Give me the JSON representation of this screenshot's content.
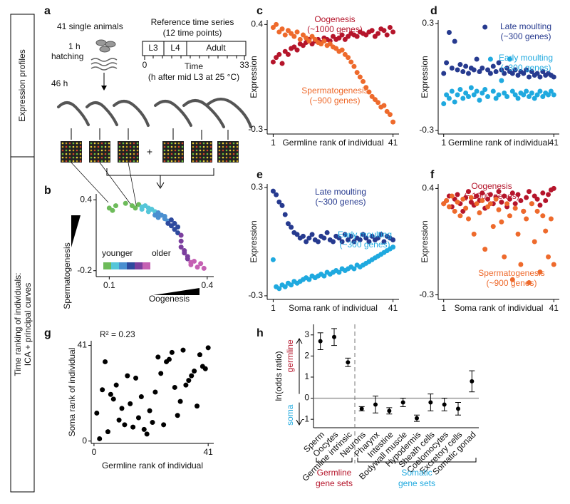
{
  "side_labels": {
    "top": "Expression profiles",
    "bottom": [
      "Time ranking of individuals:",
      "ICA + principal curves"
    ]
  },
  "panel_a": {
    "panel": "a",
    "title": "41 single animals",
    "hatch_time": "1 h",
    "hatch": "hatching",
    "age": "46 h",
    "ref_title": "Reference time series",
    "ref_sub": "(12 time points)",
    "stages": [
      "L3",
      "L4",
      "Adult"
    ],
    "time_start": "0",
    "time_end": "33",
    "time_label": "Time",
    "time_note": "(h after mid L3 at 25 °C)",
    "plus": "+"
  },
  "chart_data": [
    {
      "panel": "b",
      "type": "scatter",
      "xlabel": "Oogenesis",
      "ylabel": "Spermatogenesis",
      "xlim": [
        0.06,
        0.42
      ],
      "ylim": [
        -0.25,
        0.45
      ],
      "xticks": [
        0.1,
        0.4
      ],
      "yticks": [
        0.4,
        -0.2
      ],
      "x": [
        0.1,
        0.12,
        0.11,
        0.15,
        0.17,
        0.18,
        0.19,
        0.2,
        0.2,
        0.21,
        0.22,
        0.22,
        0.23,
        0.24,
        0.24,
        0.25,
        0.25,
        0.26,
        0.27,
        0.27,
        0.28,
        0.28,
        0.29,
        0.29,
        0.3,
        0.3,
        0.31,
        0.31,
        0.32,
        0.32,
        0.32,
        0.33,
        0.33,
        0.34,
        0.34,
        0.35,
        0.35,
        0.36,
        0.37,
        0.38,
        0.39
      ],
      "values": [
        0.33,
        0.35,
        0.31,
        0.37,
        0.35,
        0.33,
        0.36,
        0.34,
        0.32,
        0.35,
        0.33,
        0.3,
        0.32,
        0.3,
        0.27,
        0.29,
        0.25,
        0.27,
        0.24,
        0.26,
        0.22,
        0.2,
        0.23,
        0.18,
        0.2,
        0.15,
        0.17,
        0.12,
        0.1,
        0.05,
        0.0,
        -0.03,
        -0.05,
        -0.1,
        -0.08,
        -0.13,
        -0.15,
        -0.12,
        -0.17,
        -0.14,
        -0.18
      ],
      "colormap": [
        "#6dbb5a",
        "#55c6d9",
        "#4a8fd0",
        "#2e4a9e",
        "#7b3f9e",
        "#c561b3"
      ],
      "legend_labels": [
        "younger",
        "older"
      ]
    },
    {
      "panel": "c",
      "type": "scatter",
      "xlabel": "Germline rank of individual",
      "ylabel": "Expression",
      "xlim": [
        -1,
        43
      ],
      "ylim": [
        -0.33,
        0.43
      ],
      "xticks": [
        1,
        41
      ],
      "yticks": [
        0.4,
        -0.3
      ],
      "x": [
        1,
        2,
        3,
        4,
        5,
        6,
        7,
        8,
        9,
        10,
        11,
        12,
        13,
        14,
        15,
        16,
        17,
        18,
        19,
        20,
        21,
        22,
        23,
        24,
        25,
        26,
        27,
        28,
        29,
        30,
        31,
        32,
        33,
        34,
        35,
        36,
        37,
        38,
        39,
        40,
        41
      ],
      "series": [
        {
          "name": "Oogenesis",
          "genes": "(~1000 genes)",
          "color": "#b5152b",
          "values": [
            0.15,
            0.18,
            0.2,
            0.14,
            0.22,
            0.2,
            0.24,
            0.25,
            0.23,
            0.27,
            0.26,
            0.28,
            0.3,
            0.27,
            0.29,
            0.3,
            0.28,
            0.31,
            0.3,
            0.29,
            0.32,
            0.3,
            0.31,
            0.33,
            0.3,
            0.32,
            0.34,
            0.33,
            0.32,
            0.35,
            0.34,
            0.33,
            0.35,
            0.36,
            0.32,
            0.34,
            0.37,
            0.36,
            0.33,
            0.38,
            0.35
          ]
        },
        {
          "name": "Spermatogenesis",
          "genes": "(~900 genes)",
          "color": "#ee6a2c",
          "values": [
            0.38,
            0.4,
            0.35,
            0.37,
            0.33,
            0.36,
            0.34,
            0.32,
            0.35,
            0.3,
            0.33,
            0.31,
            0.29,
            0.32,
            0.3,
            0.28,
            0.27,
            0.29,
            0.26,
            0.27,
            0.25,
            0.24,
            0.22,
            0.23,
            0.2,
            0.18,
            0.15,
            0.12,
            0.08,
            0.05,
            0.02,
            -0.02,
            -0.05,
            -0.08,
            -0.1,
            -0.12,
            -0.15,
            -0.14,
            -0.18,
            -0.2,
            -0.25
          ]
        }
      ]
    },
    {
      "panel": "d",
      "type": "scatter",
      "xlabel": "Germline rank of individual",
      "ylabel": "Expression",
      "xlim": [
        -1,
        43
      ],
      "ylim": [
        -0.32,
        0.32
      ],
      "xticks": [
        1,
        41
      ],
      "yticks": [
        0.3,
        -0.3
      ],
      "x": [
        1,
        2,
        3,
        4,
        5,
        6,
        7,
        8,
        9,
        10,
        11,
        12,
        13,
        14,
        15,
        16,
        17,
        18,
        19,
        20,
        21,
        22,
        23,
        24,
        25,
        26,
        27,
        28,
        29,
        30,
        31,
        32,
        33,
        34,
        35,
        36,
        37,
        38,
        39,
        40,
        41
      ],
      "series": [
        {
          "name": "Late moulting",
          "genes": "(~300 genes)",
          "color": "#263a8f",
          "values": [
            0.02,
            0.08,
            0.25,
            0.05,
            0.2,
            0.04,
            0.07,
            0.03,
            0.06,
            0.02,
            0.05,
            0.04,
            0.1,
            0.03,
            0.05,
            0.28,
            0.04,
            0.02,
            0.06,
            0.03,
            0.08,
            0.04,
            0.02,
            0.05,
            0.03,
            0.02,
            0.04,
            0.01,
            0.03,
            0.02,
            0.04,
            0.0,
            0.03,
            0.01,
            0.02,
            0.0,
            0.03,
            0.01,
            0.02,
            0.01,
            0.0
          ]
        },
        {
          "name": "Early moulting",
          "genes": "(~300 genes)",
          "color": "#1fa9df",
          "values": [
            -0.15,
            -0.1,
            -0.12,
            -0.08,
            -0.14,
            -0.1,
            -0.07,
            -0.12,
            -0.09,
            -0.11,
            -0.06,
            -0.1,
            -0.08,
            -0.13,
            -0.09,
            -0.07,
            -0.11,
            0.1,
            -0.08,
            -0.12,
            -0.1,
            -0.02,
            -0.09,
            -0.11,
            0.1,
            -0.08,
            -0.1,
            -0.12,
            -0.09,
            -0.1,
            -0.08,
            -0.11,
            -0.09,
            -0.12,
            -0.1,
            -0.08,
            -0.11,
            -0.09,
            -0.1,
            -0.08,
            -0.1
          ]
        }
      ]
    },
    {
      "panel": "e",
      "type": "scatter",
      "xlabel": "Soma rank of individual",
      "ylabel": "Expression",
      "xlim": [
        -1,
        43
      ],
      "ylim": [
        -0.32,
        0.32
      ],
      "xticks": [
        1,
        41
      ],
      "yticks": [
        0.3,
        -0.3
      ],
      "x": [
        1,
        2,
        3,
        4,
        5,
        6,
        7,
        8,
        9,
        10,
        11,
        12,
        13,
        14,
        15,
        16,
        17,
        18,
        19,
        20,
        21,
        22,
        23,
        24,
        25,
        26,
        27,
        28,
        29,
        30,
        31,
        32,
        33,
        34,
        35,
        36,
        37,
        38,
        39,
        40,
        41
      ],
      "series": [
        {
          "name": "Late moulting",
          "genes": "(~300 genes)",
          "color": "#263a8f",
          "values": [
            0.28,
            0.26,
            0.22,
            0.2,
            0.15,
            0.1,
            0.08,
            0.05,
            0.04,
            0.02,
            0.03,
            0.0,
            0.02,
            0.04,
            0.01,
            0.0,
            0.03,
            0.02,
            0.05,
            0.01,
            0.0,
            0.03,
            0.02,
            0.0,
            0.04,
            0.01,
            0.03,
            0.0,
            0.02,
            0.01,
            0.04,
            0.02,
            0.0,
            0.03,
            0.01,
            0.02,
            0.04,
            0.0,
            0.03,
            0.02,
            0.01
          ]
        },
        {
          "name": "Early moulting",
          "genes": "(~300 genes)",
          "color": "#1fa9df",
          "values": [
            -0.1,
            -0.25,
            -0.26,
            -0.24,
            -0.25,
            -0.23,
            -0.24,
            -0.22,
            -0.23,
            -0.22,
            -0.21,
            -0.2,
            -0.21,
            -0.19,
            -0.2,
            -0.19,
            -0.18,
            -0.19,
            -0.17,
            -0.18,
            -0.17,
            -0.16,
            -0.17,
            -0.15,
            -0.16,
            -0.15,
            -0.14,
            -0.15,
            -0.13,
            -0.14,
            -0.13,
            -0.12,
            -0.11,
            -0.1,
            -0.09,
            -0.08,
            -0.07,
            -0.06,
            -0.05,
            -0.04,
            -0.03
          ]
        }
      ]
    },
    {
      "panel": "f",
      "type": "scatter",
      "xlabel": "Soma rank of individual",
      "ylabel": "Expression",
      "xlim": [
        -1,
        43
      ],
      "ylim": [
        -0.33,
        0.43
      ],
      "xticks": [
        1,
        41
      ],
      "yticks": [
        0.4,
        -0.3
      ],
      "x": [
        1,
        2,
        3,
        4,
        5,
        6,
        7,
        8,
        9,
        10,
        11,
        12,
        13,
        14,
        15,
        16,
        17,
        18,
        19,
        20,
        21,
        22,
        23,
        24,
        25,
        26,
        27,
        28,
        29,
        30,
        31,
        32,
        33,
        34,
        35,
        36,
        37,
        38,
        39,
        40,
        41
      ],
      "series": [
        {
          "name": "Oogenesis",
          "genes": "(~1000 genes)",
          "color": "#b5152b",
          "values": [
            0.3,
            0.32,
            0.35,
            0.28,
            0.33,
            0.36,
            0.3,
            0.25,
            0.34,
            0.38,
            0.31,
            0.29,
            0.35,
            0.32,
            0.37,
            0.27,
            0.33,
            0.36,
            0.3,
            0.34,
            0.38,
            0.31,
            0.35,
            0.28,
            0.33,
            0.37,
            0.3,
            0.36,
            0.32,
            0.25,
            0.34,
            0.38,
            0.3,
            0.35,
            0.33,
            0.29,
            0.37,
            0.32,
            0.36,
            0.39,
            0.4
          ]
        },
        {
          "name": "Spermatogenesis",
          "genes": "(~900 genes)",
          "color": "#ee6a2c",
          "values": [
            0.3,
            0.32,
            0.28,
            0.35,
            0.25,
            0.31,
            0.22,
            0.33,
            0.27,
            0.2,
            0.34,
            0.1,
            0.3,
            0.24,
            0.32,
            0.0,
            0.28,
            0.3,
            0.15,
            0.33,
            0.26,
            0.18,
            -0.05,
            0.3,
            0.22,
            -0.2,
            0.27,
            0.1,
            -0.1,
            0.25,
            0.2,
            -0.22,
            0.3,
            0.05,
            0.25,
            -0.15,
            0.22,
            0.12,
            -0.05,
            0.2,
            -0.1
          ]
        }
      ]
    },
    {
      "panel": "g",
      "type": "scatter",
      "xlabel": "Germline rank of individual",
      "ylabel": "Soma rank of individual",
      "annotation": "R² = 0.23",
      "xlim": [
        -1,
        43
      ],
      "ylim": [
        -1,
        43
      ],
      "xticks": [
        0,
        41
      ],
      "yticks": [
        0,
        41
      ],
      "color": "#000000",
      "x": [
        1,
        2,
        3,
        4,
        5,
        6,
        7,
        8,
        9,
        10,
        11,
        12,
        13,
        14,
        15,
        16,
        17,
        18,
        19,
        20,
        21,
        22,
        23,
        24,
        25,
        26,
        27,
        28,
        29,
        30,
        31,
        32,
        33,
        34,
        35,
        36,
        37,
        38,
        39,
        40,
        41
      ],
      "values": [
        12,
        1,
        22,
        34,
        4,
        20,
        18,
        24,
        9,
        14,
        7,
        28,
        16,
        6,
        27,
        10,
        19,
        5,
        3,
        13,
        8,
        21,
        36,
        29,
        7,
        34,
        35,
        38,
        23,
        11,
        17,
        39,
        24,
        26,
        28,
        30,
        15,
        37,
        32,
        31,
        40
      ]
    },
    {
      "panel": "h",
      "type": "errorbar",
      "ylabel": "ln(odds ratio)",
      "up_label": "germline",
      "down_label": "soma",
      "up_color": "#b5152b",
      "down_color": "#1fa9df",
      "ylim": [
        -1.4,
        3.5
      ],
      "yticks": [
        -1,
        0,
        1,
        2,
        3
      ],
      "groups": [
        {
          "name": [
            "Germline",
            "gene sets"
          ],
          "color": "#b5152b",
          "categories": [
            "Sperm",
            "Oocytes",
            "Germline intrinsic"
          ],
          "values": [
            2.7,
            2.9,
            1.7
          ],
          "errors": [
            0.4,
            0.4,
            0.2
          ]
        },
        {
          "name": [
            "Somatic",
            "gene sets"
          ],
          "color": "#1fa9df",
          "categories": [
            "Neurons",
            "Pharynx",
            "Intestine",
            "Bodywall muscle",
            "Hypodermis",
            "Sheath cells",
            "Coelomocytes",
            "Excretory cells",
            "Somatic gonad"
          ],
          "values": [
            -0.5,
            -0.3,
            -0.6,
            -0.2,
            -0.95,
            -0.2,
            -0.3,
            -0.5,
            0.8
          ],
          "errors": [
            0.1,
            0.4,
            0.15,
            0.2,
            0.15,
            0.4,
            0.3,
            0.3,
            0.5
          ]
        }
      ]
    }
  ]
}
